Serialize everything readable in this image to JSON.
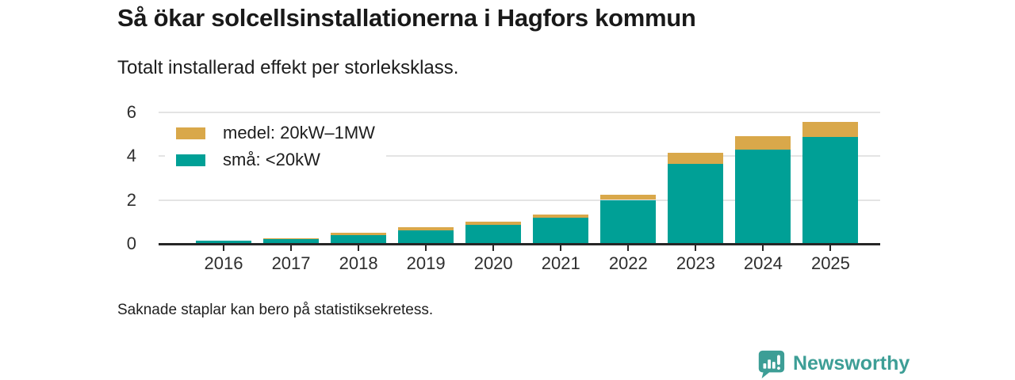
{
  "title": "Så ökar solcellsinstallationerna i Hagfors kommun",
  "subtitle": "Totalt installerad effekt per storleksklass.",
  "footnote": "Saknade staplar kan bero på statistiksekretess.",
  "branding": {
    "logo_text": "Newsworthy",
    "logo_icon": "bar-chart-speech-bubble-icon",
    "brand_color": "#3d9e96"
  },
  "chart_data": {
    "type": "bar",
    "stacked": true,
    "categories": [
      "2016",
      "2017",
      "2018",
      "2019",
      "2020",
      "2021",
      "2022",
      "2023",
      "2024",
      "2025"
    ],
    "series": [
      {
        "name": "medel: 20kW–1MW",
        "color": "#d9a84a",
        "values": [
          0,
          0.05,
          0.12,
          0.15,
          0.15,
          0.12,
          0.22,
          0.5,
          0.6,
          0.7
        ]
      },
      {
        "name": "små: <20kW",
        "color": "#00a096",
        "values": [
          0.15,
          0.22,
          0.38,
          0.6,
          0.85,
          1.2,
          2.0,
          3.65,
          4.3,
          4.85
        ]
      }
    ],
    "title": "Så ökar solcellsinstallationerna i Hagfors kommun",
    "xlabel": "",
    "ylabel": "",
    "yticks": [
      0,
      2,
      4,
      6
    ],
    "ylim": [
      0,
      6.5
    ],
    "grid": true,
    "legend_position": "top-left",
    "axis_color": "#262626",
    "gridline_color": "#e4e4e4"
  }
}
